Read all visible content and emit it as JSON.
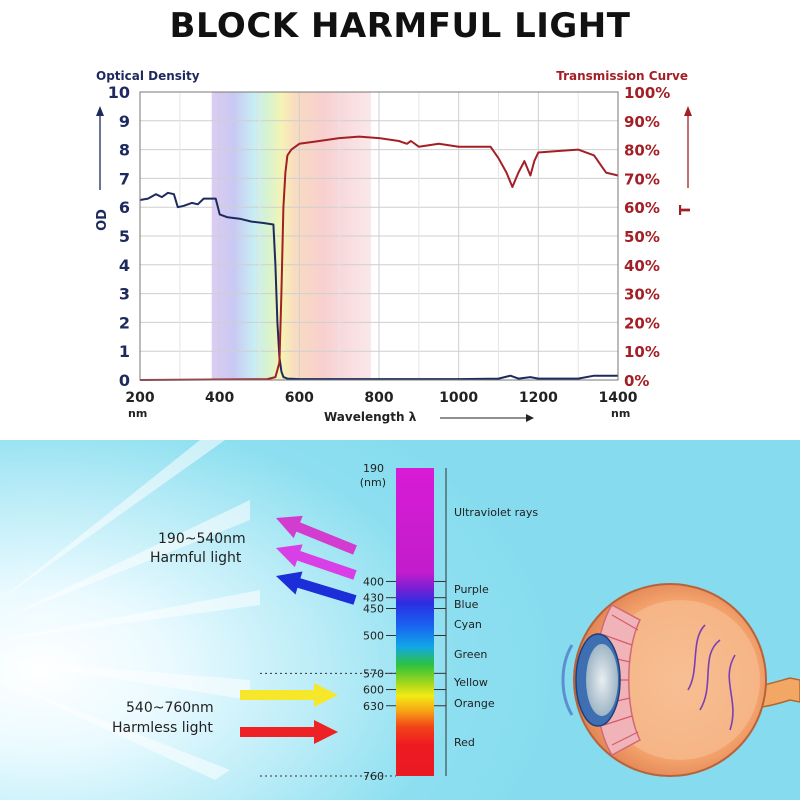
{
  "title": "BLOCK HARMFUL LIGHT",
  "chart_data": {
    "type": "line",
    "left_axis_title": "Optical Density",
    "right_axis_title": "Transmission Curve",
    "ylabel_left": "OD",
    "ylabel_right": "T",
    "xlabel": "Wavelength λ",
    "x_unit": "nm",
    "xlim": [
      200,
      1400
    ],
    "ylim_left": [
      0,
      10
    ],
    "ylim_right": [
      0,
      100
    ],
    "x_ticks": [
      "200",
      "400",
      "600",
      "800",
      "1000",
      "1200",
      "1400"
    ],
    "y_ticks_left": [
      "0",
      "1",
      "2",
      "3",
      "4",
      "5",
      "6",
      "7",
      "8",
      "9",
      "10"
    ],
    "y_ticks_right": [
      "0%",
      "10%",
      "20%",
      "30%",
      "40%",
      "50%",
      "60%",
      "70%",
      "80%",
      "90%",
      "100%"
    ],
    "grid": true,
    "series": [
      {
        "axis": "left",
        "color": "#1e2a5e",
        "x": [
          200,
          220,
          240,
          255,
          270,
          285,
          295,
          310,
          330,
          345,
          360,
          375,
          390,
          400,
          420,
          450,
          480,
          510,
          535,
          540,
          545,
          550,
          555,
          560,
          570,
          600,
          700,
          800,
          900,
          1000,
          1100,
          1130,
          1150,
          1180,
          1200,
          1300,
          1340,
          1400
        ],
        "y": [
          6.25,
          6.3,
          6.45,
          6.35,
          6.5,
          6.45,
          6.0,
          6.05,
          6.15,
          6.1,
          6.3,
          6.3,
          6.3,
          5.75,
          5.65,
          5.6,
          5.5,
          5.45,
          5.4,
          4.0,
          2.0,
          0.8,
          0.3,
          0.1,
          0.05,
          0.03,
          0.03,
          0.03,
          0.03,
          0.03,
          0.05,
          0.15,
          0.05,
          0.1,
          0.05,
          0.05,
          0.15,
          0.15
        ]
      },
      {
        "axis": "right",
        "color": "#a31f26",
        "x": [
          200,
          520,
          540,
          550,
          555,
          560,
          565,
          570,
          580,
          600,
          650,
          700,
          750,
          800,
          850,
          870,
          880,
          900,
          950,
          1000,
          1050,
          1080,
          1100,
          1120,
          1135,
          1150,
          1165,
          1180,
          1190,
          1200,
          1250,
          1300,
          1340,
          1370,
          1400
        ],
        "y": [
          0,
          0.3,
          1,
          6,
          30,
          60,
          72,
          78,
          80,
          82,
          83,
          84,
          84.5,
          84,
          83,
          82,
          83,
          81,
          82,
          81,
          81,
          81,
          77,
          72,
          67,
          72,
          76,
          71,
          76,
          79,
          79.5,
          80,
          78,
          72,
          71
        ]
      }
    ],
    "spectrum_band_nm": [
      380,
      780
    ],
    "spectrum": {
      "scale_labels": [
        "190",
        "(nm)",
        "400",
        "430",
        "450",
        "500",
        "570",
        "600",
        "630",
        "760"
      ],
      "band_labels": [
        "Ultraviolet rays",
        "Purple",
        "Blue",
        "Cyan",
        "Green",
        "Yellow",
        "Orange",
        "Red"
      ],
      "harmful_range": "190~540nm",
      "harmful_label": "Harmful light",
      "harmless_range": "540~760nm",
      "harmless_label": "Harmless light",
      "arrow_colors": [
        "#d23ccf",
        "#d93fe6",
        "#1c2ed8",
        "#f7e72a",
        "#ee2124"
      ]
    }
  }
}
